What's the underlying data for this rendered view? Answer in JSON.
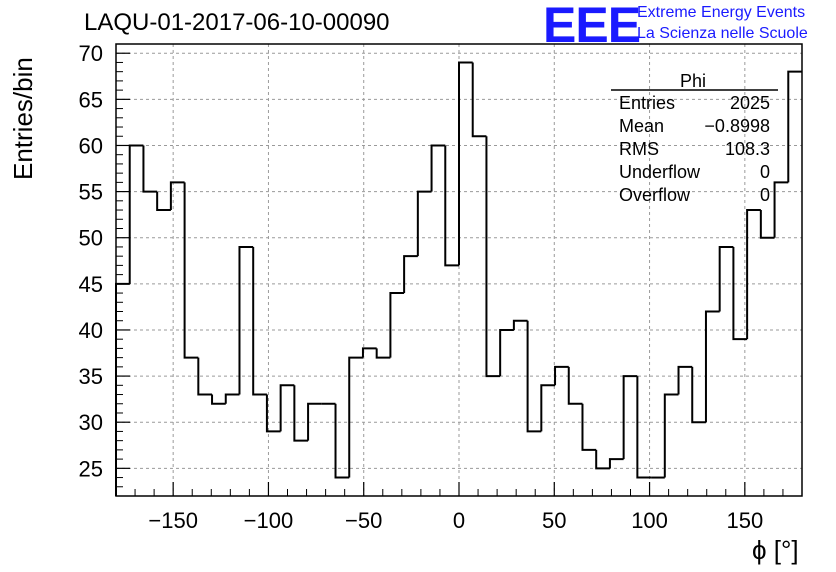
{
  "title": "LAQU-01-2017-06-10-00090",
  "logo": {
    "text": "EEE",
    "line1": "Extreme Energy Events",
    "line2": "La Scienza nelle Scuole",
    "color": "#1a1aff"
  },
  "stats": {
    "name": "Phi",
    "rows": [
      {
        "label": "Entries",
        "value": "2025"
      },
      {
        "label": "Mean",
        "value": "−0.8998"
      },
      {
        "label": "RMS",
        "value": "108.3"
      },
      {
        "label": "Underflow",
        "value": "0"
      },
      {
        "label": "Overflow",
        "value": "0"
      }
    ]
  },
  "chart_data": {
    "type": "bar",
    "histogram": true,
    "title": "LAQU-01-2017-06-10-00090",
    "xlabel": "ϕ [°]",
    "ylabel": "Entries/bin",
    "xlim": [
      -180,
      180
    ],
    "ylim": [
      22,
      71
    ],
    "grid": true,
    "bin_width": 7.2,
    "bin_edges_start": -180,
    "values": [
      45,
      60,
      55,
      53,
      56,
      37,
      33,
      32,
      33,
      49,
      33,
      29,
      34,
      28,
      32,
      32,
      24,
      37,
      38,
      37,
      44,
      48,
      55,
      60,
      47,
      69,
      61,
      35,
      40,
      41,
      29,
      34,
      36,
      32,
      27,
      25,
      26,
      35,
      24,
      24,
      33,
      36,
      30,
      42,
      49,
      39,
      53,
      50,
      56,
      68
    ],
    "xticks": [
      -150,
      -100,
      -50,
      0,
      50,
      100,
      150
    ],
    "xtick_labels": [
      "−150",
      "−100",
      "−50",
      "0",
      "50",
      "100",
      "150"
    ],
    "yticks": [
      25,
      30,
      35,
      40,
      45,
      50,
      55,
      60,
      65,
      70
    ],
    "ytick_labels": [
      "25",
      "30",
      "35",
      "40",
      "45",
      "50",
      "55",
      "60",
      "65",
      "70"
    ]
  }
}
